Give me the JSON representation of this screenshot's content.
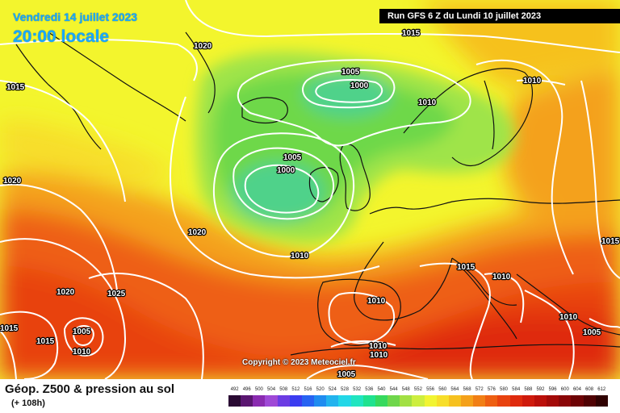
{
  "header": {
    "date": "Vendredi 14 juillet 2023",
    "local_time": "20:00 locale",
    "run_info": "Run GFS 6 Z du Lundi 10 juillet 2023"
  },
  "copyright": "Copyright © 2023 Meteociel.fr",
  "legend": {
    "title": "Géop. Z500 & pression au sol",
    "forecast_hour": "(+ 108h)",
    "scale_values": [
      "492",
      "496",
      "500",
      "504",
      "508",
      "512",
      "516",
      "520",
      "524",
      "528",
      "532",
      "536",
      "540",
      "544",
      "548",
      "552",
      "556",
      "560",
      "564",
      "568",
      "572",
      "576",
      "580",
      "584",
      "588",
      "592",
      "596",
      "600",
      "604",
      "608",
      "612"
    ],
    "scale_colors": [
      "#2a0a33",
      "#5a1670",
      "#8a2bb0",
      "#9f49d6",
      "#6c3ce3",
      "#3b3cf0",
      "#2763f2",
      "#1f8cf0",
      "#22b3ee",
      "#22d7e7",
      "#20e5c0",
      "#1fe28f",
      "#36d95e",
      "#6fd64b",
      "#a2e043",
      "#cdee3f",
      "#f1f432",
      "#f7de2a",
      "#f6c11f",
      "#f4a11a",
      "#f17f15",
      "#ee5f12",
      "#e8420f",
      "#df2a0d",
      "#cf1a0c",
      "#bb100a",
      "#a30a08",
      "#8a0607",
      "#6e0305",
      "#500203",
      "#300101"
    ]
  },
  "map": {
    "colors": {
      "ocean_yellow": "#f3f52d",
      "green": "#6ed84a",
      "green_light": "#9fe449",
      "green_core": "#4fd28a",
      "orange": "#f29a1c",
      "red": "#e8420f",
      "isobar": "#ffffff",
      "coast": "#111111"
    },
    "isobar_labels": [
      "1015",
      "1020",
      "1005",
      "1000",
      "1015",
      "1010",
      "1010",
      "1005",
      "1000",
      "1020",
      "1020",
      "1010",
      "1015",
      "1015",
      "1020",
      "1025",
      "1005",
      "1015",
      "1010",
      "1010",
      "1010",
      "1010",
      "1010",
      "1005",
      "1005",
      "1010",
      "1015"
    ]
  }
}
